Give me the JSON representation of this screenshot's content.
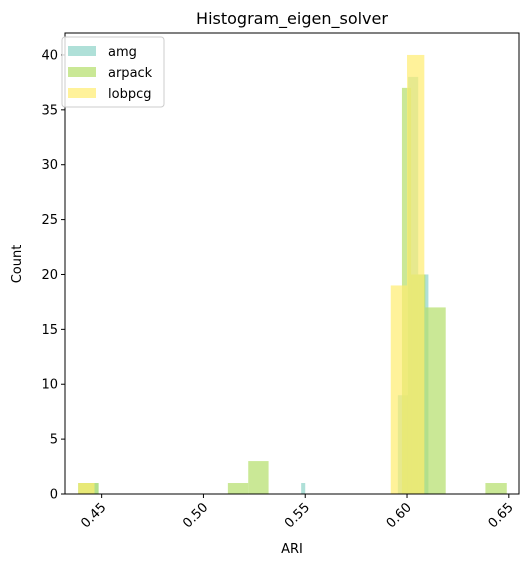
{
  "chart_data": {
    "type": "bar",
    "title": "Histogram_eigen_solver",
    "xlabel": "ARI",
    "ylabel": "Count",
    "xlim": [
      0.432,
      0.655
    ],
    "ylim": [
      0,
      42
    ],
    "xticks": [
      0.45,
      0.5,
      0.55,
      0.6,
      0.65
    ],
    "xtick_labels": [
      "0.45",
      "0.50",
      "0.55",
      "0.60",
      "0.65"
    ],
    "yticks": [
      0,
      5,
      10,
      15,
      20,
      25,
      30,
      35,
      40
    ],
    "ytick_labels": [
      "0",
      "5",
      "10",
      "15",
      "20",
      "25",
      "30",
      "35",
      "40"
    ],
    "legend_position": "top-left",
    "grid": false,
    "series": [
      {
        "name": "amg",
        "color": "#8dd3c7",
        "opacity": 0.7,
        "bins": [
          {
            "x0": 0.4385,
            "x1": 0.4485,
            "count": 1
          },
          {
            "x0": 0.548,
            "x1": 0.55,
            "count": 1
          },
          {
            "x0": 0.5955,
            "x1": 0.6005,
            "count": 9
          },
          {
            "x0": 0.6005,
            "x1": 0.6055,
            "count": 38
          },
          {
            "x0": 0.6055,
            "x1": 0.6105,
            "count": 20
          }
        ]
      },
      {
        "name": "arpack",
        "color": "#b3de69",
        "opacity": 0.7,
        "bins": [
          {
            "x0": 0.4385,
            "x1": 0.4485,
            "count": 1
          },
          {
            "x0": 0.512,
            "x1": 0.522,
            "count": 1
          },
          {
            "x0": 0.522,
            "x1": 0.532,
            "count": 3
          },
          {
            "x0": 0.5975,
            "x1": 0.602,
            "count": 37
          },
          {
            "x0": 0.602,
            "x1": 0.609,
            "count": 20
          },
          {
            "x0": 0.609,
            "x1": 0.619,
            "count": 17
          },
          {
            "x0": 0.6385,
            "x1": 0.649,
            "count": 1
          }
        ]
      },
      {
        "name": "lobpcg",
        "color": "#ffed6f",
        "opacity": 0.7,
        "bins": [
          {
            "x0": 0.4385,
            "x1": 0.4465,
            "count": 1
          },
          {
            "x0": 0.592,
            "x1": 0.6,
            "count": 19
          },
          {
            "x0": 0.6,
            "x1": 0.6085,
            "count": 40
          }
        ]
      }
    ]
  }
}
